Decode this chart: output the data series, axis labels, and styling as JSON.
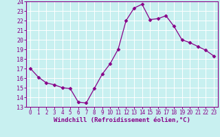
{
  "x": [
    0,
    1,
    2,
    3,
    4,
    5,
    6,
    7,
    8,
    9,
    10,
    11,
    12,
    13,
    14,
    15,
    16,
    17,
    18,
    19,
    20,
    21,
    22,
    23
  ],
  "y": [
    17,
    16.1,
    15.5,
    15.3,
    15.0,
    14.9,
    13.5,
    13.4,
    14.9,
    16.4,
    17.5,
    19.0,
    22.0,
    23.3,
    23.7,
    22.1,
    22.2,
    22.5,
    21.4,
    20.0,
    19.7,
    19.3,
    18.9,
    18.3
  ],
  "line_color": "#880088",
  "marker": "D",
  "markersize": 2.5,
  "linewidth": 0.9,
  "xlabel": "Windchill (Refroidissement éolien,°C)",
  "xlim": [
    -0.5,
    23.5
  ],
  "ylim": [
    13,
    24
  ],
  "yticks": [
    13,
    14,
    15,
    16,
    17,
    18,
    19,
    20,
    21,
    22,
    23,
    24
  ],
  "xticks": [
    0,
    1,
    2,
    3,
    4,
    5,
    6,
    7,
    8,
    9,
    10,
    11,
    12,
    13,
    14,
    15,
    16,
    17,
    18,
    19,
    20,
    21,
    22,
    23
  ],
  "bg_color": "#c8f0f0",
  "grid_color": "#ffffff",
  "label_color": "#880088",
  "tick_color": "#880088",
  "xlabel_fontsize": 6.5,
  "ytick_fontsize": 6,
  "xtick_fontsize": 5.5,
  "spine_color": "#880088"
}
